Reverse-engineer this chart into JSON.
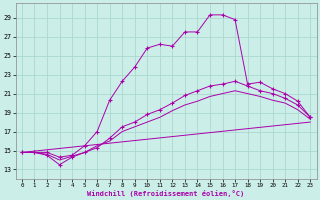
{
  "xlabel": "Windchill (Refroidissement éolien,°C)",
  "background_color": "#cceee8",
  "grid_color": "#aad8d0",
  "line_color": "#aa00aa",
  "x_ticks": [
    0,
    1,
    2,
    3,
    4,
    5,
    6,
    7,
    8,
    9,
    10,
    11,
    12,
    13,
    14,
    15,
    16,
    17,
    18,
    19,
    20,
    21,
    22,
    23
  ],
  "y_ticks": [
    13,
    15,
    17,
    19,
    21,
    23,
    25,
    27,
    29
  ],
  "xlim": [
    -0.5,
    23.5
  ],
  "ylim": [
    12.0,
    30.5
  ],
  "series": [
    {
      "x": [
        0,
        1,
        2,
        3,
        4,
        5,
        6,
        7,
        8,
        9,
        10,
        11,
        12,
        13,
        14,
        15,
        16,
        17,
        18,
        19,
        20,
        21,
        22,
        23
      ],
      "y": [
        14.8,
        14.8,
        14.8,
        14.3,
        14.5,
        15.5,
        17.0,
        20.3,
        22.3,
        23.8,
        25.8,
        26.2,
        26.0,
        27.5,
        27.5,
        29.3,
        29.3,
        28.8,
        22.0,
        22.2,
        21.5,
        21.0,
        20.2,
        18.5
      ],
      "marker": "+"
    },
    {
      "x": [
        0,
        1,
        2,
        3,
        4,
        5,
        6,
        7,
        8,
        9,
        10,
        11,
        12,
        13,
        14,
        15,
        16,
        17,
        18,
        19,
        20,
        21,
        22,
        23
      ],
      "y": [
        14.8,
        14.8,
        14.5,
        13.5,
        14.3,
        14.8,
        15.3,
        16.3,
        17.5,
        18.0,
        18.8,
        19.3,
        20.0,
        20.8,
        21.3,
        21.8,
        22.0,
        22.3,
        21.8,
        21.3,
        21.0,
        20.5,
        19.8,
        18.5
      ],
      "marker": "+"
    },
    {
      "x": [
        0,
        1,
        2,
        3,
        4,
        5,
        6,
        7,
        8,
        9,
        10,
        11,
        12,
        13,
        14,
        15,
        16,
        17,
        18,
        19,
        20,
        21,
        22,
        23
      ],
      "y": [
        14.8,
        14.8,
        14.6,
        14.0,
        14.4,
        14.8,
        15.5,
        16.0,
        17.0,
        17.5,
        18.0,
        18.5,
        19.2,
        19.8,
        20.2,
        20.7,
        21.0,
        21.3,
        21.0,
        20.7,
        20.3,
        20.0,
        19.3,
        18.3
      ],
      "marker": null
    },
    {
      "x": [
        0,
        23
      ],
      "y": [
        14.8,
        18.0
      ],
      "marker": null
    }
  ]
}
